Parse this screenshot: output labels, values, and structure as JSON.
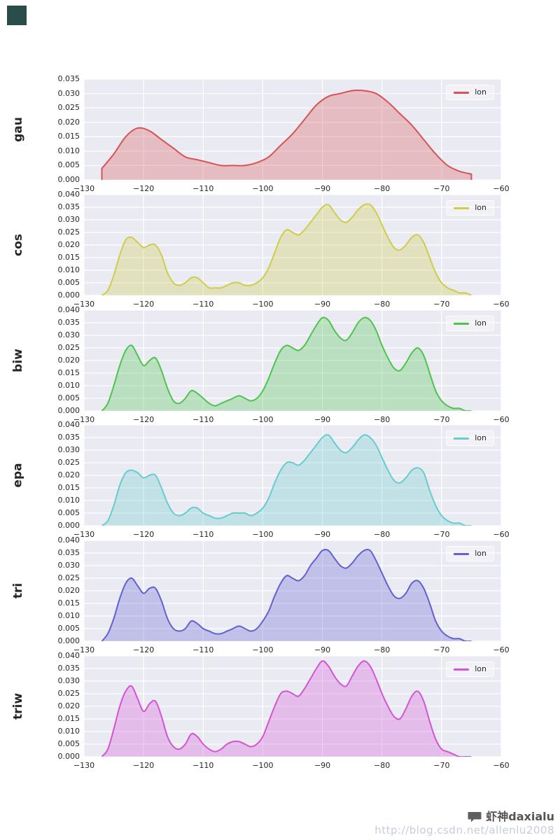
{
  "styles": {
    "plot_bg": "#eaeaf2",
    "grid_color": "#ffffff",
    "tick_color": "#262626",
    "corner_mark_color": "#2a4d49"
  },
  "watermark": {
    "icon": "chat-bubble-icon",
    "name": "虾神daxialu",
    "url": "http://blog.csdn.net/allenlu2008"
  },
  "chart_common": {
    "xlim": [
      -130,
      -60
    ],
    "x_ticks": [
      -130,
      -120,
      -110,
      -100,
      -90,
      -80,
      -70,
      -60
    ],
    "x": [
      -127,
      -126,
      -125,
      -124,
      -123,
      -122,
      -121,
      -120,
      -119,
      -118,
      -117,
      -116,
      -115,
      -114,
      -113,
      -112,
      -111,
      -110,
      -109,
      -108,
      -107,
      -106,
      -105,
      -104,
      -103,
      -102,
      -101,
      -100,
      -99,
      -98,
      -97,
      -96,
      -95,
      -94,
      -93,
      -92,
      -91,
      -90,
      -89,
      -88,
      -87,
      -86,
      -85,
      -84,
      -83,
      -82,
      -81,
      -80,
      -79,
      -78,
      -77,
      -76,
      -75,
      -74,
      -73,
      -72,
      -71,
      -70,
      -69,
      -68,
      -67,
      -66,
      -65
    ]
  },
  "chart_data": [
    {
      "type": "area",
      "kernel": "gau",
      "legend": "lon",
      "color": "#d65454",
      "fill_alpha": 0.3,
      "ylim": [
        0,
        0.035
      ],
      "ytick_step": 0.005,
      "x": [
        -127,
        -125,
        -123,
        -121,
        -119,
        -117,
        -115,
        -113,
        -111,
        -109,
        -107,
        -105,
        -103,
        -101,
        -99,
        -97,
        -95,
        -93,
        -91,
        -89,
        -87,
        -85,
        -83,
        -81,
        -79,
        -77,
        -75,
        -73,
        -71,
        -69,
        -67,
        -65
      ],
      "y": [
        0.004,
        0.009,
        0.015,
        0.018,
        0.017,
        0.014,
        0.011,
        0.008,
        0.007,
        0.006,
        0.005,
        0.005,
        0.005,
        0.006,
        0.008,
        0.012,
        0.016,
        0.021,
        0.026,
        0.029,
        0.03,
        0.031,
        0.031,
        0.03,
        0.027,
        0.023,
        0.019,
        0.014,
        0.009,
        0.005,
        0.003,
        0.002
      ]
    },
    {
      "type": "area",
      "kernel": "cos",
      "legend": "lon",
      "color": "#cdcd4a",
      "fill_alpha": 0.3,
      "ylim": [
        0,
        0.04
      ],
      "ytick_step": 0.005,
      "y": [
        0.0,
        0.002,
        0.008,
        0.016,
        0.022,
        0.023,
        0.021,
        0.019,
        0.02,
        0.02,
        0.016,
        0.009,
        0.005,
        0.004,
        0.005,
        0.007,
        0.007,
        0.005,
        0.003,
        0.003,
        0.003,
        0.004,
        0.005,
        0.005,
        0.004,
        0.004,
        0.005,
        0.007,
        0.011,
        0.017,
        0.023,
        0.026,
        0.025,
        0.024,
        0.026,
        0.029,
        0.032,
        0.035,
        0.036,
        0.033,
        0.03,
        0.029,
        0.031,
        0.034,
        0.036,
        0.036,
        0.033,
        0.028,
        0.023,
        0.019,
        0.018,
        0.02,
        0.023,
        0.024,
        0.021,
        0.015,
        0.009,
        0.005,
        0.003,
        0.002,
        0.001,
        0.001,
        0.0
      ]
    },
    {
      "type": "area",
      "kernel": "biw",
      "legend": "lon",
      "color": "#4dc44d",
      "fill_alpha": 0.3,
      "ylim": [
        0,
        0.04
      ],
      "ytick_step": 0.005,
      "y": [
        0.0,
        0.003,
        0.01,
        0.018,
        0.024,
        0.026,
        0.022,
        0.018,
        0.02,
        0.021,
        0.016,
        0.009,
        0.004,
        0.003,
        0.005,
        0.008,
        0.007,
        0.005,
        0.003,
        0.002,
        0.003,
        0.004,
        0.005,
        0.006,
        0.005,
        0.004,
        0.005,
        0.008,
        0.013,
        0.019,
        0.024,
        0.026,
        0.025,
        0.024,
        0.026,
        0.03,
        0.034,
        0.037,
        0.036,
        0.032,
        0.029,
        0.028,
        0.031,
        0.035,
        0.037,
        0.036,
        0.032,
        0.026,
        0.021,
        0.017,
        0.016,
        0.019,
        0.023,
        0.025,
        0.022,
        0.015,
        0.008,
        0.004,
        0.002,
        0.001,
        0.001,
        0.0,
        0.0
      ]
    },
    {
      "type": "area",
      "kernel": "epa",
      "legend": "lon",
      "color": "#66cccc",
      "fill_alpha": 0.3,
      "ylim": [
        0,
        0.04
      ],
      "ytick_step": 0.005,
      "y": [
        0.0,
        0.002,
        0.008,
        0.016,
        0.021,
        0.022,
        0.021,
        0.019,
        0.02,
        0.02,
        0.015,
        0.009,
        0.005,
        0.004,
        0.005,
        0.007,
        0.007,
        0.005,
        0.004,
        0.003,
        0.003,
        0.004,
        0.005,
        0.005,
        0.005,
        0.004,
        0.005,
        0.007,
        0.011,
        0.017,
        0.022,
        0.025,
        0.025,
        0.024,
        0.026,
        0.029,
        0.032,
        0.035,
        0.036,
        0.033,
        0.03,
        0.029,
        0.031,
        0.034,
        0.036,
        0.035,
        0.032,
        0.027,
        0.022,
        0.018,
        0.017,
        0.019,
        0.022,
        0.023,
        0.021,
        0.014,
        0.008,
        0.004,
        0.002,
        0.001,
        0.001,
        0.0,
        0.0
      ]
    },
    {
      "type": "area",
      "kernel": "tri",
      "legend": "lon",
      "color": "#6161d0",
      "fill_alpha": 0.3,
      "ylim": [
        0,
        0.04
      ],
      "ytick_step": 0.005,
      "y": [
        0.0,
        0.003,
        0.009,
        0.017,
        0.023,
        0.025,
        0.022,
        0.019,
        0.021,
        0.021,
        0.016,
        0.009,
        0.005,
        0.004,
        0.005,
        0.008,
        0.007,
        0.005,
        0.004,
        0.003,
        0.003,
        0.004,
        0.005,
        0.006,
        0.005,
        0.004,
        0.005,
        0.008,
        0.012,
        0.018,
        0.023,
        0.026,
        0.025,
        0.024,
        0.026,
        0.03,
        0.033,
        0.036,
        0.036,
        0.033,
        0.03,
        0.029,
        0.031,
        0.034,
        0.036,
        0.036,
        0.032,
        0.027,
        0.022,
        0.018,
        0.017,
        0.019,
        0.023,
        0.024,
        0.021,
        0.015,
        0.008,
        0.004,
        0.002,
        0.001,
        0.001,
        0.0,
        0.0
      ]
    },
    {
      "type": "area",
      "kernel": "triw",
      "legend": "lon",
      "color": "#d454d4",
      "fill_alpha": 0.3,
      "ylim": [
        0,
        0.04
      ],
      "ytick_step": 0.005,
      "y": [
        0.0,
        0.003,
        0.011,
        0.02,
        0.026,
        0.028,
        0.023,
        0.018,
        0.021,
        0.022,
        0.016,
        0.008,
        0.004,
        0.003,
        0.005,
        0.009,
        0.008,
        0.005,
        0.003,
        0.002,
        0.003,
        0.005,
        0.006,
        0.006,
        0.005,
        0.004,
        0.005,
        0.008,
        0.014,
        0.02,
        0.025,
        0.026,
        0.025,
        0.024,
        0.027,
        0.031,
        0.035,
        0.038,
        0.036,
        0.032,
        0.029,
        0.028,
        0.032,
        0.036,
        0.038,
        0.036,
        0.031,
        0.025,
        0.02,
        0.016,
        0.015,
        0.019,
        0.024,
        0.026,
        0.022,
        0.014,
        0.007,
        0.003,
        0.002,
        0.001,
        0.0,
        0.0,
        0.0
      ]
    }
  ]
}
